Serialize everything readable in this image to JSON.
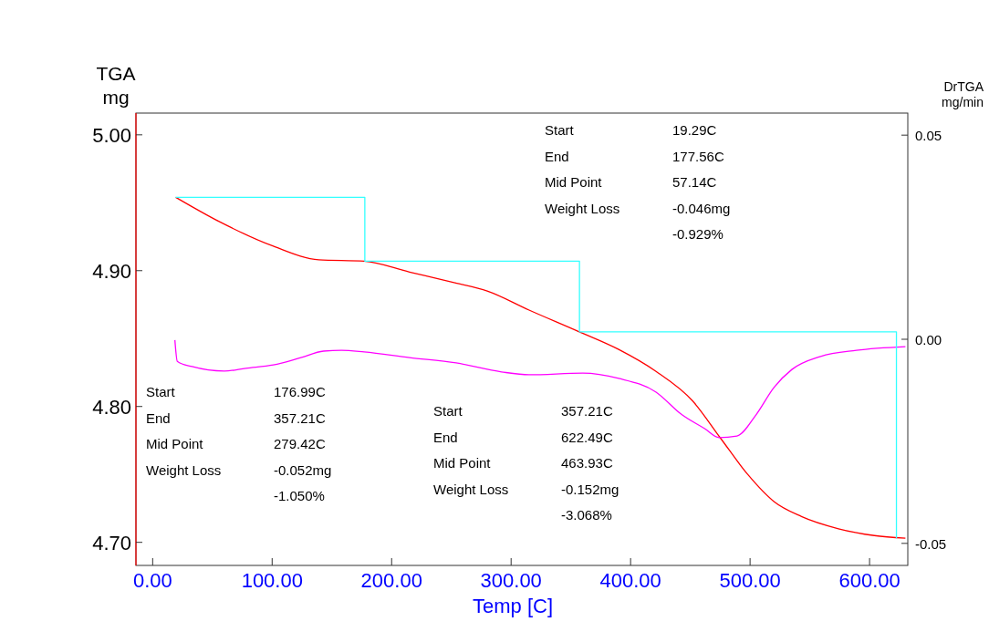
{
  "chart_data": {
    "type": "line",
    "xlabel": "Temp  [C]",
    "ylabel": "TGA mg",
    "y2label": "DrTGA mg/min",
    "xlim": [
      -14,
      632
    ],
    "xticks": [
      {
        "value": 0,
        "label": "0.00"
      },
      {
        "value": 100,
        "label": "100.00"
      },
      {
        "value": 200,
        "label": "200.00"
      },
      {
        "value": 300,
        "label": "300.00"
      },
      {
        "value": 400,
        "label": "400.00"
      },
      {
        "value": 500,
        "label": "500.00"
      },
      {
        "value": 600,
        "label": "600.00"
      }
    ],
    "ylim": [
      4.683,
      5.016
    ],
    "yticks": [
      {
        "value": 4.7,
        "label": "4.70"
      },
      {
        "value": 4.8,
        "label": "4.80"
      },
      {
        "value": 4.9,
        "label": "4.90"
      },
      {
        "value": 5,
        "label": "5.00"
      }
    ],
    "y2lim": [
      -0.0554,
      0.0554
    ],
    "y2ticks": [
      -0.05,
      {
        "value": 0,
        "label": "0.00"
      },
      0.05
    ],
    "grid": false,
    "series": [
      {
        "color": "#ff0000",
        "x": [
          19.3,
          56,
          101,
          139,
          177,
          215,
          253,
          280,
          315,
          357,
          390,
          421,
          452,
          475,
          498,
          520,
          543,
          574,
          604,
          630
        ],
        "values": [
          4.954,
          4.936,
          4.918,
          4.908,
          4.907,
          4.899,
          4.891,
          4.885,
          4.871,
          4.855,
          4.842,
          4.826,
          4.804,
          4.777,
          4.75,
          4.73,
          4.719,
          4.71,
          4.705,
          4.703
        ]
      },
      {
        "color": "#ff00ff",
        "axis": "y2",
        "x": [
          18.6,
          20.6,
          33,
          60,
          78,
          101,
          124,
          143,
          158,
          177,
          215,
          254,
          292,
          315,
          360,
          390,
          421,
          443,
          462,
          474,
          489,
          505,
          520,
          535,
          559,
          589,
          630
        ],
        "values": [
          -0.0002,
          -0.0054,
          -0.0067,
          -0.0078,
          -0.0071,
          -0.0063,
          -0.0045,
          -0.0029,
          -0.0027,
          -0.0031,
          -0.0045,
          -0.0058,
          -0.008,
          -0.0087,
          -0.0083,
          -0.0096,
          -0.0129,
          -0.0185,
          -0.0219,
          -0.0241,
          -0.0237,
          -0.0185,
          -0.0118,
          -0.0074,
          -0.0042,
          -0.0027,
          -0.0018
        ]
      },
      {
        "type": "step",
        "color": "#33ffff",
        "x": [
          19.29,
          177.56,
          357.21,
          622.49
        ],
        "values": [
          4.954,
          4.907,
          4.855,
          4.703
        ]
      }
    ],
    "annotations": [
      "Start\t19.29C\nEnd\t177.56C\nMid Point\t57.14C\nWeight Loss\t-0.046mg\n\t-0.929%",
      "Start\t176.99C\nEnd\t357.21C\nMid Point\t279.42C\nWeight Loss\t-0.052mg\n\t-1.050%",
      "Start\t357.21C\nEnd\t622.49C\nMid Point\t463.93C\nWeight Loss\t-0.152mg\n\t-3.068%"
    ]
  }
}
